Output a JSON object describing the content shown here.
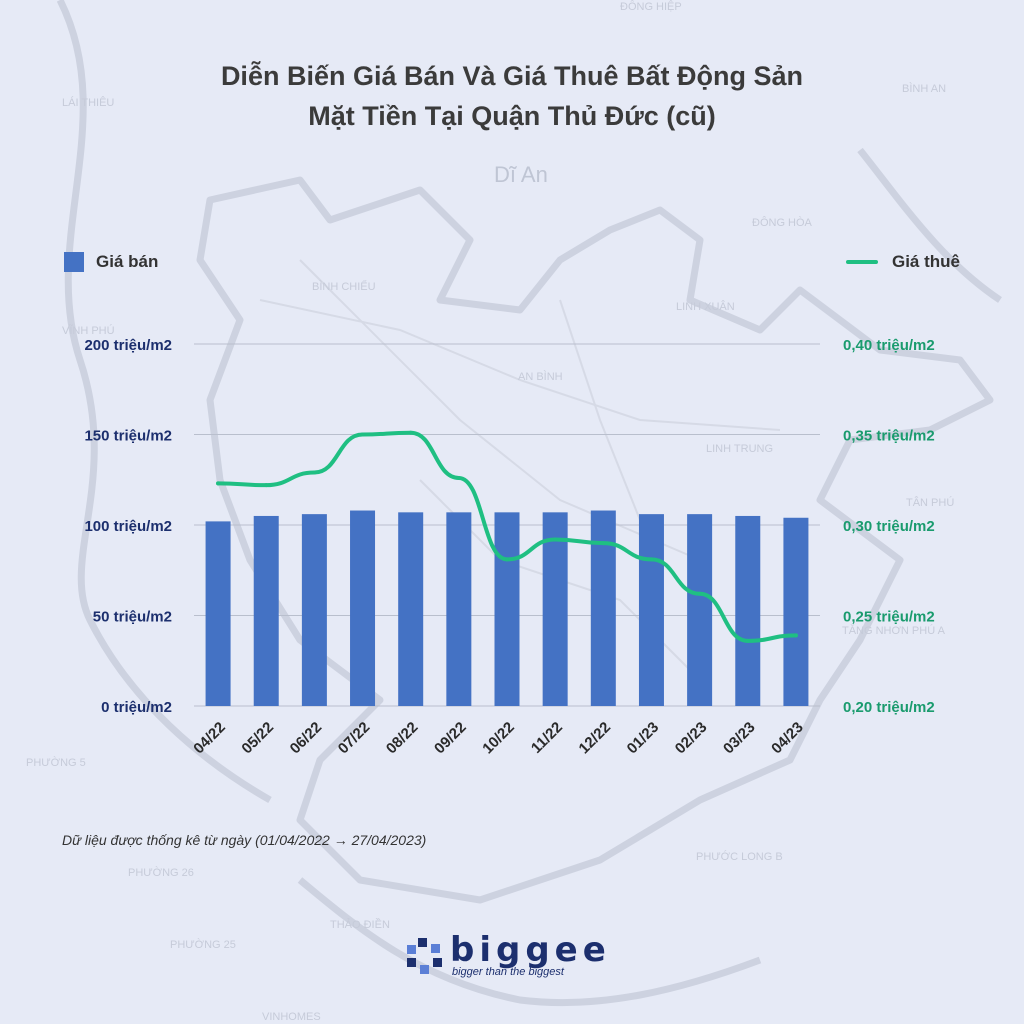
{
  "title_line1": "Diễn Biến Giá Bán Và Giá Thuê Bất Động Sản",
  "title_line2": "Mặt Tiền Tại Quận Thủ Đức (cũ)",
  "map_labels": [
    "LÁI THIÊU",
    "Dĩ An",
    "BÌNH AN",
    "ĐÔNG HÒA",
    "BÌNH CHIỂU",
    "LINH XUÂN",
    "VĨNH PHÚ",
    "AN BÌNH",
    "LINH TRUNG",
    "TÂN PHÚ",
    "TĂNG NHƠN PHÚ A",
    "PHƯỜNG 5",
    "PHƯỚC LONG B",
    "PHƯỜNG 26",
    "THẢO ĐIỀN",
    "PHƯỜNG 25",
    "VINHOMES",
    "ĐÔNG HIỆP"
  ],
  "chart_data": {
    "type": "bar+line",
    "categories": [
      "04/22",
      "05/22",
      "06/22",
      "07/22",
      "08/22",
      "09/22",
      "10/22",
      "11/22",
      "12/22",
      "01/23",
      "02/23",
      "03/23",
      "04/23"
    ],
    "series": [
      {
        "name": "Giá bán",
        "type": "bar",
        "axis": "left",
        "color": "#4472c4",
        "values": [
          102,
          105,
          106,
          108,
          107,
          107,
          107,
          107,
          108,
          106,
          106,
          105,
          104
        ]
      },
      {
        "name": "Giá thuê",
        "type": "line",
        "axis": "right",
        "color": "#1fbf82",
        "values": [
          0.323,
          0.322,
          0.329,
          0.35,
          0.351,
          0.326,
          0.281,
          0.292,
          0.29,
          0.281,
          0.262,
          0.236,
          0.239
        ]
      }
    ],
    "left_axis": {
      "ylim": [
        0,
        200
      ],
      "ticks": [
        0,
        50,
        100,
        150,
        200
      ],
      "tick_labels": [
        "0 triệu/m2",
        "50 triệu/m2",
        "100 triệu/m2",
        "150 triệu/m2",
        "200 triệu/m2"
      ],
      "color": "#1c2f6e"
    },
    "right_axis": {
      "ylim": [
        0.2,
        0.4
      ],
      "ticks": [
        0.2,
        0.25,
        0.3,
        0.35,
        0.4
      ],
      "tick_labels": [
        "0,20 triệu/m2",
        "0,25 triệu/m2",
        "0,30 triệu/m2",
        "0,35 triệu/m2",
        "0,40 triệu/m2"
      ],
      "color": "#1a9b6e"
    },
    "grid": true,
    "legend": [
      {
        "label": "Giá bán",
        "placement": "top-left"
      },
      {
        "label": "Giá thuê",
        "placement": "top-right"
      }
    ]
  },
  "note": "Dữ liệu được thống kê từ ngày (01/04/2022 → 27/04/2023)",
  "logo": {
    "brand": "biggee",
    "slogan": "bigger than the biggest"
  }
}
